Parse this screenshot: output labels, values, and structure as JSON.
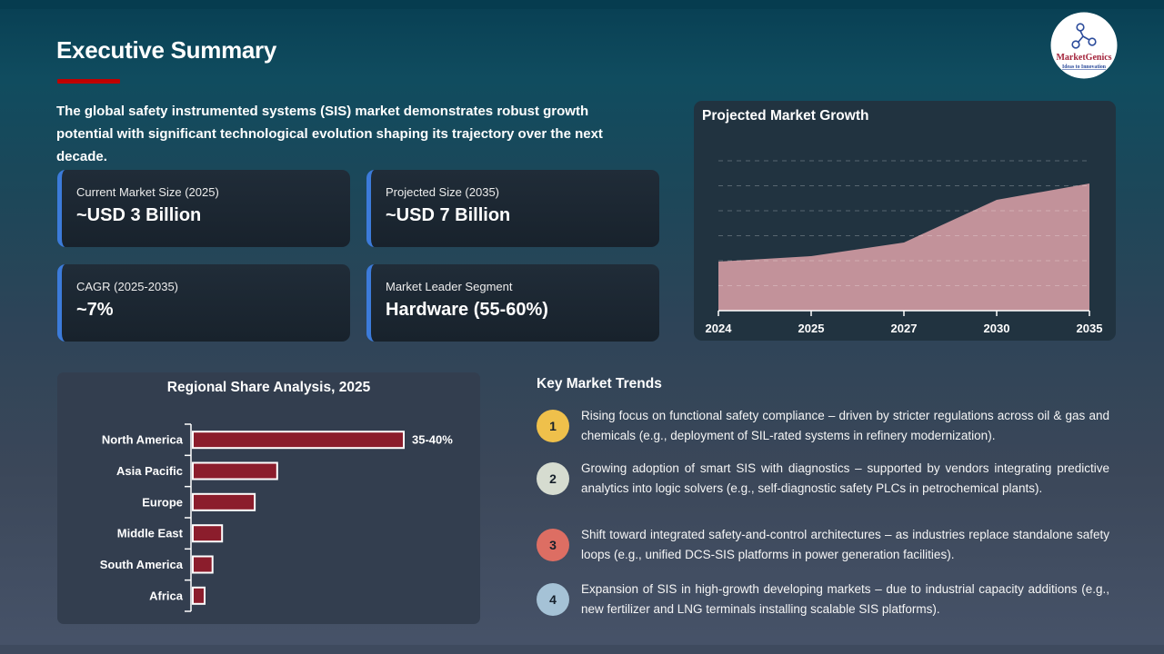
{
  "slide": {
    "title": "Executive Summary",
    "intro_lines": [
      "The global safety instrumented systems (SIS) market demonstrates robust growth",
      "potential with significant technological evolution shaping its trajectory over the next",
      "decade."
    ]
  },
  "logo": {
    "name": "MarketGenics",
    "tagline": "Ideas to Innovation",
    "brand_color": "#A3233B",
    "accent_color": "#2B4B9B"
  },
  "stats": [
    {
      "label": "Current Market Size (2025)",
      "value": "~USD 3 Billion"
    },
    {
      "label": "Projected Size (2035)",
      "value": "~USD 7 Billion"
    },
    {
      "label": "CAGR (2025-2035)",
      "value": "~7%"
    },
    {
      "label": "Market Leader Segment",
      "value": "Hardware (55-60%)"
    }
  ],
  "trends": {
    "title": "Key Market Trends",
    "items": [
      {
        "number": "1",
        "circle_color": "#EFC04B",
        "text": "Rising focus on functional safety compliance – driven by stricter regulations across oil & gas and chemicals (e.g., deployment of SIL-rated systems in refinery modernization)."
      },
      {
        "number": "2",
        "circle_color": "#D6DCD0",
        "text": "Growing adoption of smart SIS with diagnostics – supported by vendors integrating predictive analytics into logic solvers (e.g., self-diagnostic safety PLCs in petrochemical plants)."
      },
      {
        "number": "3",
        "circle_color": "#DD6E63",
        "text": "Shift toward integrated safety-and-control architectures – as industries replace standalone safety loops (e.g., unified DCS-SIS platforms in power generation facilities)."
      },
      {
        "number": "4",
        "circle_color": "#A5C2D6",
        "text": "Expansion of SIS in high-growth developing markets – due to industrial capacity additions (e.g., new fertilizer and LNG terminals installing scalable SIS platforms)."
      }
    ]
  },
  "chart_data": [
    {
      "type": "area",
      "title": "Projected Market Growth",
      "x": [
        "2024",
        "2025",
        "2027",
        "2030",
        "2035"
      ],
      "values": [
        2.7,
        3.0,
        3.75,
        6.1,
        7.0
      ],
      "ylim": [
        0,
        8.85
      ],
      "grid": "dashed-horizontal",
      "fill_color": "#C2929A",
      "axis_color": "#FFFFFF",
      "label_color": "#FFFFFF"
    },
    {
      "type": "bar",
      "orientation": "horizontal",
      "title": "Regional Share Analysis, 2025",
      "categories": [
        "North America",
        "Asia Pacific",
        "Europe",
        "Middle East",
        "South America",
        "Africa"
      ],
      "values": [
        37.5,
        15,
        11,
        5.2,
        3.5,
        2.1
      ],
      "data_labels": [
        "35-40%",
        "",
        "",
        "",
        "",
        ""
      ],
      "xlim": [
        0,
        40
      ],
      "bar_color": "#8B1D2C",
      "bar_border_color": "#FFFFFF",
      "axis_color": "#FFFFFF",
      "label_color": "#FFFFFF"
    }
  ]
}
